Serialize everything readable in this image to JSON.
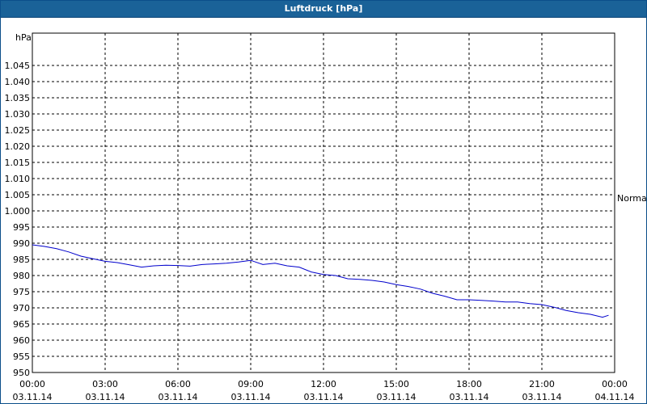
{
  "window": {
    "title": "Luftdruck [hPa]"
  },
  "colors": {
    "titlebar": "#1a6298",
    "series": "#0000cc",
    "grid": "#000000"
  },
  "chart_data": {
    "type": "line",
    "title": "Luftdruck [hPa]",
    "ylabel": "hPa",
    "ylim": [
      950,
      1050
    ],
    "yticks": [
      950,
      955,
      960,
      965,
      970,
      975,
      980,
      985,
      990,
      995,
      1000,
      1005,
      1010,
      1015,
      1020,
      1025,
      1030,
      1035,
      1040,
      1045
    ],
    "ytick_labels": [
      "950",
      "955",
      "960",
      "965",
      "970",
      "975",
      "980",
      "985",
      "990",
      "995",
      "1.000",
      "1.005",
      "1.010",
      "1.015",
      "1.020",
      "1.025",
      "1.030",
      "1.035",
      "1.040",
      "1.045"
    ],
    "xlim": [
      "03.11.14 00:00",
      "04.11.14 00:00"
    ],
    "xticks": [
      {
        "time": "00:00",
        "date": "03.11.14"
      },
      {
        "time": "03:00",
        "date": "03.11.14"
      },
      {
        "time": "06:00",
        "date": "03.11.14"
      },
      {
        "time": "09:00",
        "date": "03.11.14"
      },
      {
        "time": "12:00",
        "date": "03.11.14"
      },
      {
        "time": "15:00",
        "date": "03.11.14"
      },
      {
        "time": "18:00",
        "date": "03.11.14"
      },
      {
        "time": "21:00",
        "date": "03.11.14"
      },
      {
        "time": "00:00",
        "date": "04.11.14"
      }
    ],
    "grid": true,
    "annotation": {
      "label": "Normal",
      "value": 1004
    },
    "series": [
      {
        "x": [
          "00:00",
          "00:30",
          "01:00",
          "01:30",
          "02:00",
          "02:30",
          "03:00",
          "03:30",
          "04:00",
          "04:30",
          "05:00",
          "05:30",
          "06:00",
          "06:30",
          "07:00",
          "07:30",
          "08:00",
          "08:30",
          "09:00",
          "09:30",
          "10:00",
          "10:30",
          "11:00",
          "11:30",
          "12:00",
          "12:30",
          "13:00",
          "13:30",
          "14:00",
          "14:30",
          "15:00",
          "15:30",
          "16:00",
          "16:30",
          "17:00",
          "17:30",
          "18:00",
          "18:30",
          "19:00",
          "19:30",
          "20:00",
          "20:30",
          "21:00",
          "21:30",
          "22:00",
          "22:30",
          "23:00",
          "23:30",
          "23:45"
        ],
        "values": [
          989.5,
          989.0,
          988.3,
          987.3,
          986.0,
          985.2,
          984.4,
          984.0,
          983.3,
          982.6,
          983.0,
          983.2,
          983.1,
          982.9,
          983.4,
          983.6,
          983.8,
          984.2,
          984.7,
          983.4,
          983.8,
          983.0,
          982.6,
          981.1,
          980.3,
          980.0,
          979.0,
          978.8,
          978.5,
          978.0,
          977.2,
          976.6,
          975.8,
          974.5,
          973.6,
          972.5,
          972.5,
          972.3,
          972.1,
          971.8,
          971.8,
          971.3,
          971.0,
          970.2,
          969.2,
          968.5,
          968.0,
          967.1,
          967.7
        ]
      }
    ]
  }
}
